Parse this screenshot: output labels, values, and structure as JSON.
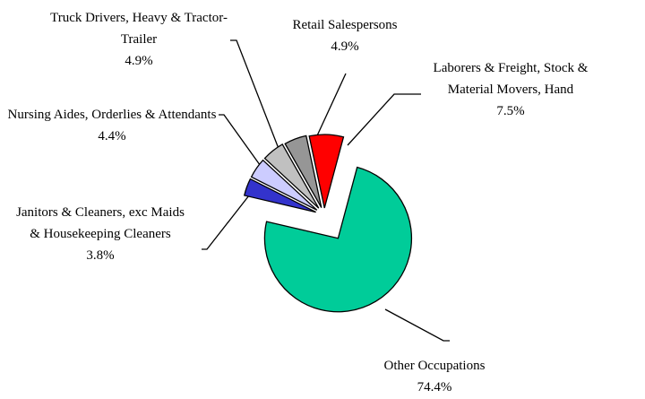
{
  "chart_data": {
    "type": "pie",
    "categories": [
      "Laborers & Freight, Stock & Material Movers, Hand",
      "Other Occupations",
      "Janitors & Cleaners, exc Maids & Housekeeping Cleaners",
      "Nursing Aides, Orderlies & Attendants",
      "Truck Drivers, Heavy & Tractor-Trailer",
      "Retail Salespersons"
    ],
    "values": [
      7.5,
      74.4,
      3.8,
      4.4,
      4.9,
      4.9
    ],
    "value_labels": [
      "7.5%",
      "74.4%",
      "3.8%",
      "4.4%",
      "4.9%",
      "4.9%"
    ],
    "colors": [
      "#ff0000",
      "#00cc99",
      "#3333cc",
      "#ccccff",
      "#c0c0c0",
      "#969696"
    ]
  }
}
